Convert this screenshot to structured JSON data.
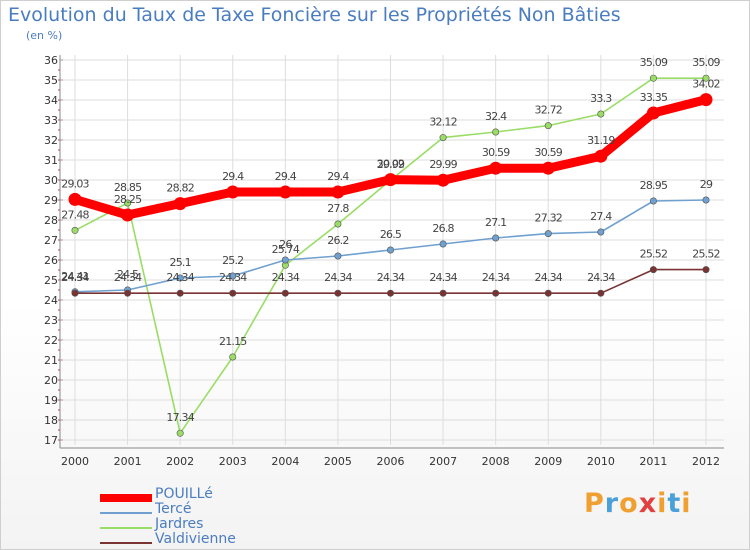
{
  "chart_data": {
    "type": "line",
    "title": "Evolution du Taux de Taxe Foncière sur les Propriétés Non Bâties",
    "ylabel": "(en %)",
    "xlabel": "",
    "categories": [
      "2000",
      "2001",
      "2002",
      "2003",
      "2004",
      "2005",
      "2006",
      "2007",
      "2008",
      "2009",
      "2010",
      "2011",
      "2012"
    ],
    "ylim": [
      17,
      36
    ],
    "yticks": [
      17,
      18,
      19,
      20,
      21,
      22,
      23,
      24,
      25,
      26,
      27,
      28,
      29,
      30,
      31,
      32,
      33,
      34,
      35,
      36
    ],
    "grid": true,
    "legend_position": "bottom-left",
    "series": [
      {
        "name": "POUILLé",
        "color": "#ff0000",
        "values": [
          29.03,
          28.25,
          28.82,
          29.4,
          29.4,
          29.4,
          30.02,
          29.99,
          30.59,
          30.59,
          31.19,
          33.35,
          34.02
        ],
        "labels": [
          "29.03",
          "28.25",
          "28.82",
          "29.4",
          "29.4",
          "29.4",
          "30.02",
          "29.99",
          "30.59",
          "30.59",
          "31.19",
          "33.35",
          "34.02"
        ]
      },
      {
        "name": "Tercé",
        "color": "#6fa0cf",
        "values": [
          24.41,
          24.5,
          25.1,
          25.2,
          26.0,
          26.2,
          26.5,
          26.8,
          27.1,
          27.32,
          27.4,
          28.95,
          29.0
        ],
        "labels": [
          "24.41",
          "24.5",
          "25.1",
          "25.2",
          "26",
          "26.2",
          "26.5",
          "26.8",
          "27.1",
          "27.32",
          "27.4",
          "28.95",
          "29"
        ]
      },
      {
        "name": "Jardres",
        "color": "#99dd66",
        "values": [
          27.48,
          28.85,
          17.34,
          21.15,
          25.74,
          27.8,
          29.99,
          32.12,
          32.4,
          32.72,
          33.3,
          35.09,
          35.09
        ],
        "labels": [
          "27.48",
          "28.85",
          "17.34",
          "21.15",
          "25.74",
          "27.8",
          "29.99",
          "32.12",
          "32.4",
          "32.72",
          "33.3",
          "35.09",
          "35.09"
        ]
      },
      {
        "name": "Valdivienne",
        "color": "#7a3333",
        "values": [
          24.34,
          24.34,
          24.34,
          24.34,
          24.34,
          24.34,
          24.34,
          24.34,
          24.34,
          24.34,
          24.34,
          25.52,
          25.52
        ],
        "labels": [
          "24.34",
          "24.34",
          "24.34",
          "24.34",
          "24.34",
          "24.34",
          "24.34",
          "24.34",
          "24.34",
          "24.34",
          "24.34",
          "25.52",
          "25.52"
        ]
      }
    ]
  },
  "legend": {
    "items": [
      {
        "label": "POUILLé",
        "color": "#ff0000"
      },
      {
        "label": "Tercé",
        "color": "#6fa0cf"
      },
      {
        "label": "Jardres",
        "color": "#99dd66"
      },
      {
        "label": "Valdivienne",
        "color": "#7a3333"
      }
    ]
  },
  "logo": {
    "letters": [
      "P",
      "r",
      "o",
      "x",
      "i",
      "t",
      "i"
    ],
    "colors": [
      "#f0a030",
      "#4aa0d8",
      "#f0a030",
      "#e04040",
      "#f0a030",
      "#4aa0d8",
      "#f0a030"
    ]
  }
}
